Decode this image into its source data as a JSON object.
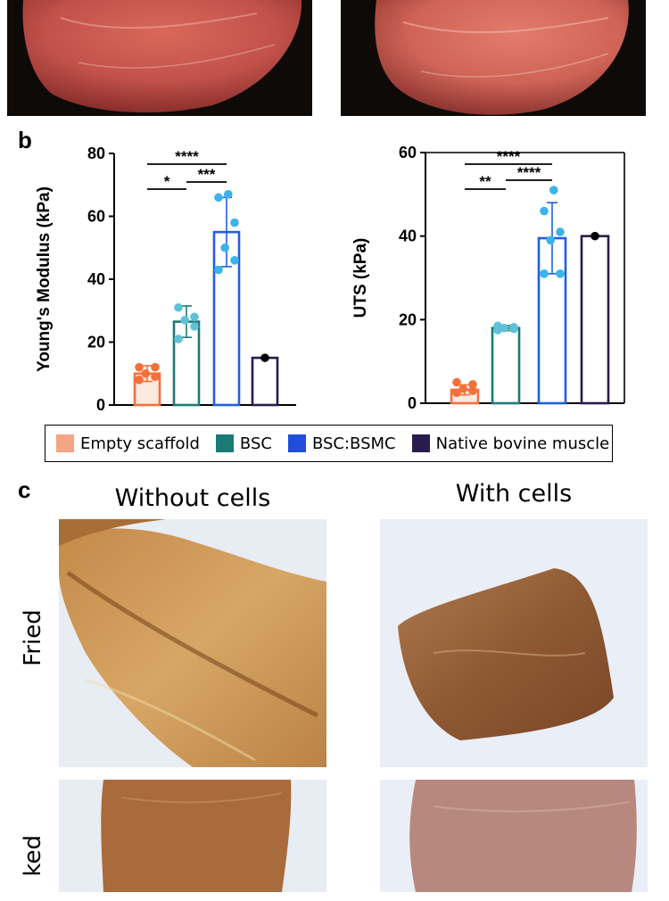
{
  "panels": {
    "b_label": "b",
    "c_label": "c"
  },
  "legend": {
    "items": [
      {
        "label": "Empty scaffold",
        "color": "#f4a582"
      },
      {
        "label": "BSC",
        "color": "#1b7a76"
      },
      {
        "label": "BSC:BSMC",
        "color": "#1f4fd8"
      },
      {
        "label": "Native bovine muscle",
        "color": "#2a1a4d"
      }
    ]
  },
  "chart_data": [
    {
      "type": "bar",
      "categories": [
        "Empty scaffold",
        "BSC",
        "BSC:BSMC",
        "Native bovine muscle"
      ],
      "values": [
        10,
        26.5,
        55,
        15
      ],
      "errors": [
        2.5,
        5,
        11,
        0
      ],
      "points": [
        [
          8,
          9,
          10,
          12,
          12
        ],
        [
          21,
          25,
          27,
          28,
          31
        ],
        [
          43,
          46,
          50,
          58,
          66,
          67
        ],
        [
          15
        ]
      ],
      "colors": [
        "#f4703a",
        "#1b7a76",
        "#1f5fe0",
        "#2a1a4d"
      ],
      "point_colors": [
        "#f4703a",
        "#5fc0d8",
        "#3ab4ea",
        "#000000"
      ],
      "ylabel": "Young's Modulus (kPa)",
      "ylim": [
        0,
        80
      ],
      "yticks": [
        "0",
        "20",
        "40",
        "60",
        "80"
      ],
      "significance": [
        {
          "from": 0,
          "to": 1,
          "label": "*"
        },
        {
          "from": 1,
          "to": 2,
          "label": "***"
        },
        {
          "from": 0,
          "to": 2,
          "label": "****"
        }
      ]
    },
    {
      "type": "bar",
      "categories": [
        "Empty scaffold",
        "BSC",
        "BSC:BSMC",
        "Native bovine muscle"
      ],
      "values": [
        3.2,
        18,
        39.5,
        40
      ],
      "errors": [
        1.2,
        0.6,
        8.5,
        0
      ],
      "points": [
        [
          2.5,
          3,
          3.5,
          4.5,
          5
        ],
        [
          17.5,
          17.8,
          18,
          18.2,
          18.5
        ],
        [
          31,
          31,
          39,
          41,
          46,
          51
        ],
        [
          40
        ]
      ],
      "colors": [
        "#f4703a",
        "#1b7a76",
        "#1f5fe0",
        "#2a1a4d"
      ],
      "point_colors": [
        "#f4703a",
        "#5fc0d8",
        "#3ab4ea",
        "#000000"
      ],
      "ylabel": "UTS (kPa)",
      "ylim": [
        0,
        60
      ],
      "yticks": [
        "0",
        "20",
        "40",
        "60"
      ],
      "significance": [
        {
          "from": 0,
          "to": 1,
          "label": "**"
        },
        {
          "from": 1,
          "to": 2,
          "label": "****"
        },
        {
          "from": 0,
          "to": 2,
          "label": "****"
        }
      ]
    }
  ],
  "photos_c": {
    "col_titles": [
      "Without cells",
      "With cells"
    ],
    "row_labels": [
      "Fried",
      "ked"
    ]
  }
}
